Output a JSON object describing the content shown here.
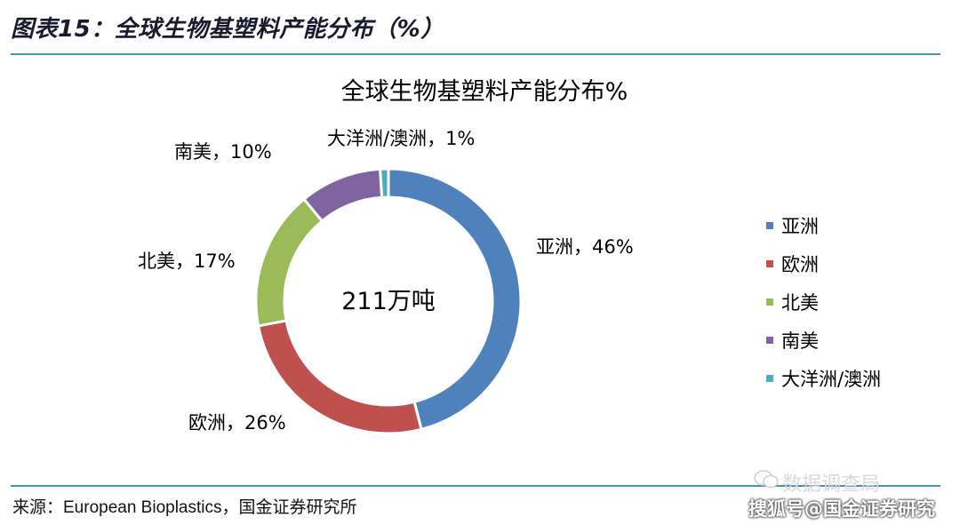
{
  "figure": {
    "header": "图表15：全球生物基塑料产能分布（%）",
    "source": "来源：European Bioplastics，国金证券研究所",
    "watermark_top": "数据调查局",
    "watermark_bottom": "搜狐号@国金证券研究"
  },
  "colors": {
    "rule": "#4d8fb3"
  },
  "chart_data": {
    "type": "pie",
    "title": "全球生物基塑料产能分布%",
    "center_text": "211万吨",
    "legend_position": "right",
    "categories": [
      "亚洲",
      "欧洲",
      "北美",
      "南美",
      "大洋洲/澳洲"
    ],
    "values": [
      46,
      26,
      17,
      10,
      1
    ],
    "unit": "%",
    "data_labels": [
      "亚洲，46%",
      "欧洲，26%",
      "北美，17%",
      "南美，10%",
      "大洋洲/澳洲，1%"
    ],
    "colors": [
      "#4f81bd",
      "#c0504d",
      "#9bbb59",
      "#8064a2",
      "#4bacc6"
    ]
  }
}
